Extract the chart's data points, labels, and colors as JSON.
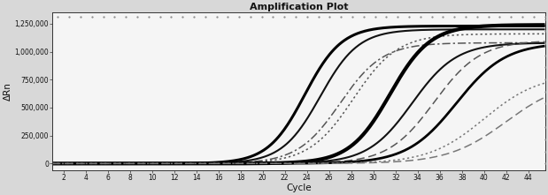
{
  "title": "Amplification Plot",
  "xlabel": "Cycle",
  "ylabel": "ΔRn",
  "xlim": [
    1,
    45.5
  ],
  "ylim": [
    -60000,
    1350000
  ],
  "xticks": [
    2,
    4,
    6,
    8,
    10,
    12,
    14,
    16,
    18,
    20,
    22,
    24,
    26,
    28,
    30,
    32,
    34,
    36,
    38,
    40,
    42,
    44
  ],
  "yticks": [
    0,
    250000,
    500000,
    750000,
    1000000,
    1250000
  ],
  "ytick_labels": [
    "0",
    "250,000",
    "500,000",
    "750,000",
    "1,000,000",
    "1,250,000"
  ],
  "background_color": "#d8d8d8",
  "plot_bg_color": "#f5f5f5",
  "curves": [
    {
      "midpoint": 23.8,
      "max": 1230000,
      "steepness": 0.6,
      "style": "solid",
      "color": "#000000",
      "lw": 2.2
    },
    {
      "midpoint": 25.2,
      "max": 1200000,
      "steepness": 0.58,
      "style": "solid",
      "color": "#111111",
      "lw": 1.5
    },
    {
      "midpoint": 27.0,
      "max": 1080000,
      "steepness": 0.52,
      "style": "dashdot",
      "color": "#555555",
      "lw": 1.1
    },
    {
      "midpoint": 28.2,
      "max": 1160000,
      "steepness": 0.5,
      "style": "dotted",
      "color": "#555555",
      "lw": 1.1
    },
    {
      "midpoint": 31.5,
      "max": 1240000,
      "steepness": 0.55,
      "style": "solid",
      "color": "#000000",
      "lw": 3.0
    },
    {
      "midpoint": 33.5,
      "max": 1080000,
      "steepness": 0.5,
      "style": "solid",
      "color": "#111111",
      "lw": 1.5
    },
    {
      "midpoint": 35.5,
      "max": 1100000,
      "steepness": 0.48,
      "style": "dashed",
      "color": "#555555",
      "lw": 1.1
    },
    {
      "midpoint": 37.5,
      "max": 1080000,
      "steepness": 0.45,
      "style": "solid",
      "color": "#000000",
      "lw": 2.0
    },
    {
      "midpoint": 40.0,
      "max": 800000,
      "steepness": 0.4,
      "style": "dotted",
      "color": "#777777",
      "lw": 1.1
    },
    {
      "midpoint": 42.0,
      "max": 750000,
      "steepness": 0.38,
      "style": "dashed",
      "color": "#777777",
      "lw": 1.1
    }
  ],
  "dot_color": "#888888",
  "dot_spacing_x": 44,
  "dot_spacing_y": 13
}
